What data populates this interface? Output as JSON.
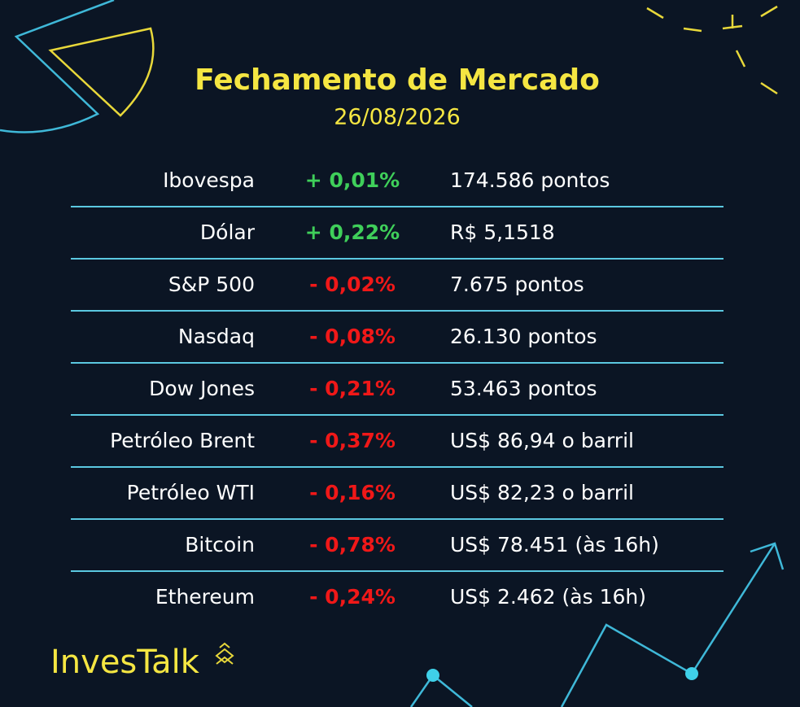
{
  "header": {
    "title": "Fechamento de Mercado",
    "date": "26/08/2026"
  },
  "table": {
    "rows": [
      {
        "name": "Ibovespa",
        "change": "+ 0,01%",
        "value": "174.586 pontos",
        "color": "#3fcf5a"
      },
      {
        "name": "Dólar",
        "change": "+ 0,22%",
        "value": "R$ 5,1518",
        "color": "#3fcf5a"
      },
      {
        "name": "S&P 500",
        "change": "- 0,02%",
        "value": "7.675 pontos",
        "color": "#f01818"
      },
      {
        "name": "Nasdaq",
        "change": "- 0,08%",
        "value": "26.130 pontos",
        "color": "#f01818"
      },
      {
        "name": "Dow Jones",
        "change": "- 0,21%",
        "value": "53.463 pontos",
        "color": "#f01818"
      },
      {
        "name": "Petróleo Brent",
        "change": "- 0,37%",
        "value": "US$ 86,94 o barril",
        "color": "#f01818"
      },
      {
        "name": "Petróleo WTI",
        "change": "- 0,16%",
        "value": "US$ 82,23 o barril",
        "color": "#f01818"
      },
      {
        "name": "Bitcoin",
        "change": "- 0,78%",
        "value": "US$ 78.451 (às 16h)",
        "color": "#f01818"
      },
      {
        "name": "Ethereum",
        "change": "- 0,24%",
        "value": "US$ 2.462 (às 16h)",
        "color": "#f01818"
      }
    ]
  },
  "brand": "InvesTalk"
}
